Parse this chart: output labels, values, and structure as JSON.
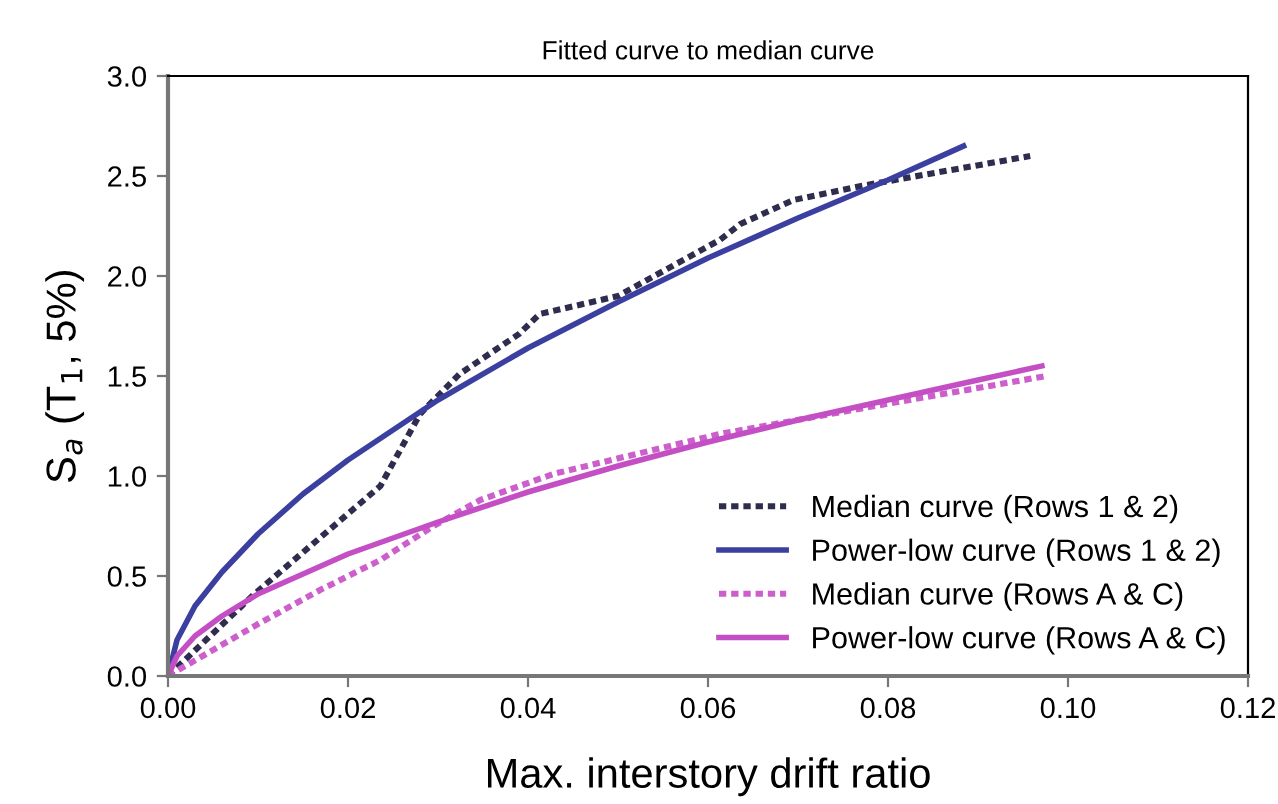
{
  "chart_data": {
    "type": "line",
    "title": "Fitted curve to median curve",
    "xlabel": "Max. interstory drift ratio",
    "ylabel": "S$_{a}$ (T$_{1}$, 5%)",
    "xlim": [
      0,
      0.12
    ],
    "xticks": [
      {
        "value": 0,
        "label": "0.00"
      },
      {
        "value": 0.02,
        "label": "0.02"
      },
      {
        "value": 0.04,
        "label": "0.04"
      },
      {
        "value": 0.06,
        "label": "0.06"
      },
      {
        "value": 0.08,
        "label": "0.08"
      },
      {
        "value": 0.1,
        "label": "0.10"
      },
      {
        "value": 0.12,
        "label": "0.12"
      }
    ],
    "ylim": [
      0,
      3
    ],
    "yticks": [
      {
        "value": 0,
        "label": "0.0"
      },
      {
        "value": 0.5,
        "label": "0.5"
      },
      {
        "value": 1,
        "label": "1.0"
      },
      {
        "value": 1.5,
        "label": "1.5"
      },
      {
        "value": 2,
        "label": "2.0"
      },
      {
        "value": 2.5,
        "label": "2.5"
      },
      {
        "value": 3,
        "label": "3.0"
      }
    ],
    "grid": false,
    "legend": "bottom right",
    "marker": "none",
    "series": [
      {
        "name": "Median curve (Rows 1 & 2)",
        "color": "#2e2d4e",
        "line_style": "dotted",
        "x": [
          0,
          0.0096,
          0.0236,
          0.028,
          0.0324,
          0.039,
          0.0413,
          0.05,
          0.0613,
          0.0636,
          0.0695,
          0.077,
          0.0958
        ],
        "values": [
          0,
          0.41,
          0.95,
          1.31,
          1.51,
          1.71,
          1.81,
          1.9,
          2.18,
          2.26,
          2.38,
          2.45,
          2.6
        ]
      },
      {
        "name": "Power-low curve (Rows 1 & 2)",
        "color": "#3b3fa0",
        "line_style": "solid",
        "x": [
          0,
          0.001,
          0.003,
          0.006,
          0.01,
          0.015,
          0.02,
          0.03,
          0.04,
          0.05,
          0.06,
          0.07,
          0.08,
          0.0884
        ],
        "values": [
          0,
          0.18,
          0.35,
          0.52,
          0.71,
          0.91,
          1.08,
          1.38,
          1.64,
          1.87,
          2.09,
          2.29,
          2.48,
          2.65
        ]
      },
      {
        "name": "Median curve (Rows A & C)",
        "color": "#cc5fcc",
        "line_style": "dotted",
        "x": [
          0,
          0.01,
          0.0169,
          0.0236,
          0.0295,
          0.0347,
          0.0428,
          0.0613,
          0.0798,
          0.0976
        ],
        "values": [
          0,
          0.26,
          0.43,
          0.58,
          0.75,
          0.88,
          1.01,
          1.21,
          1.36,
          1.5
        ]
      },
      {
        "name": "Power-low curve (Rows A & C)",
        "color": "#c44fc4",
        "line_style": "solid",
        "x": [
          0,
          0.001,
          0.003,
          0.006,
          0.01,
          0.015,
          0.02,
          0.03,
          0.04,
          0.05,
          0.06,
          0.07,
          0.08,
          0.09,
          0.0971
        ],
        "values": [
          0,
          0.1,
          0.2,
          0.3,
          0.41,
          0.51,
          0.61,
          0.77,
          0.92,
          1.05,
          1.17,
          1.28,
          1.38,
          1.48,
          1.55
        ]
      }
    ]
  }
}
